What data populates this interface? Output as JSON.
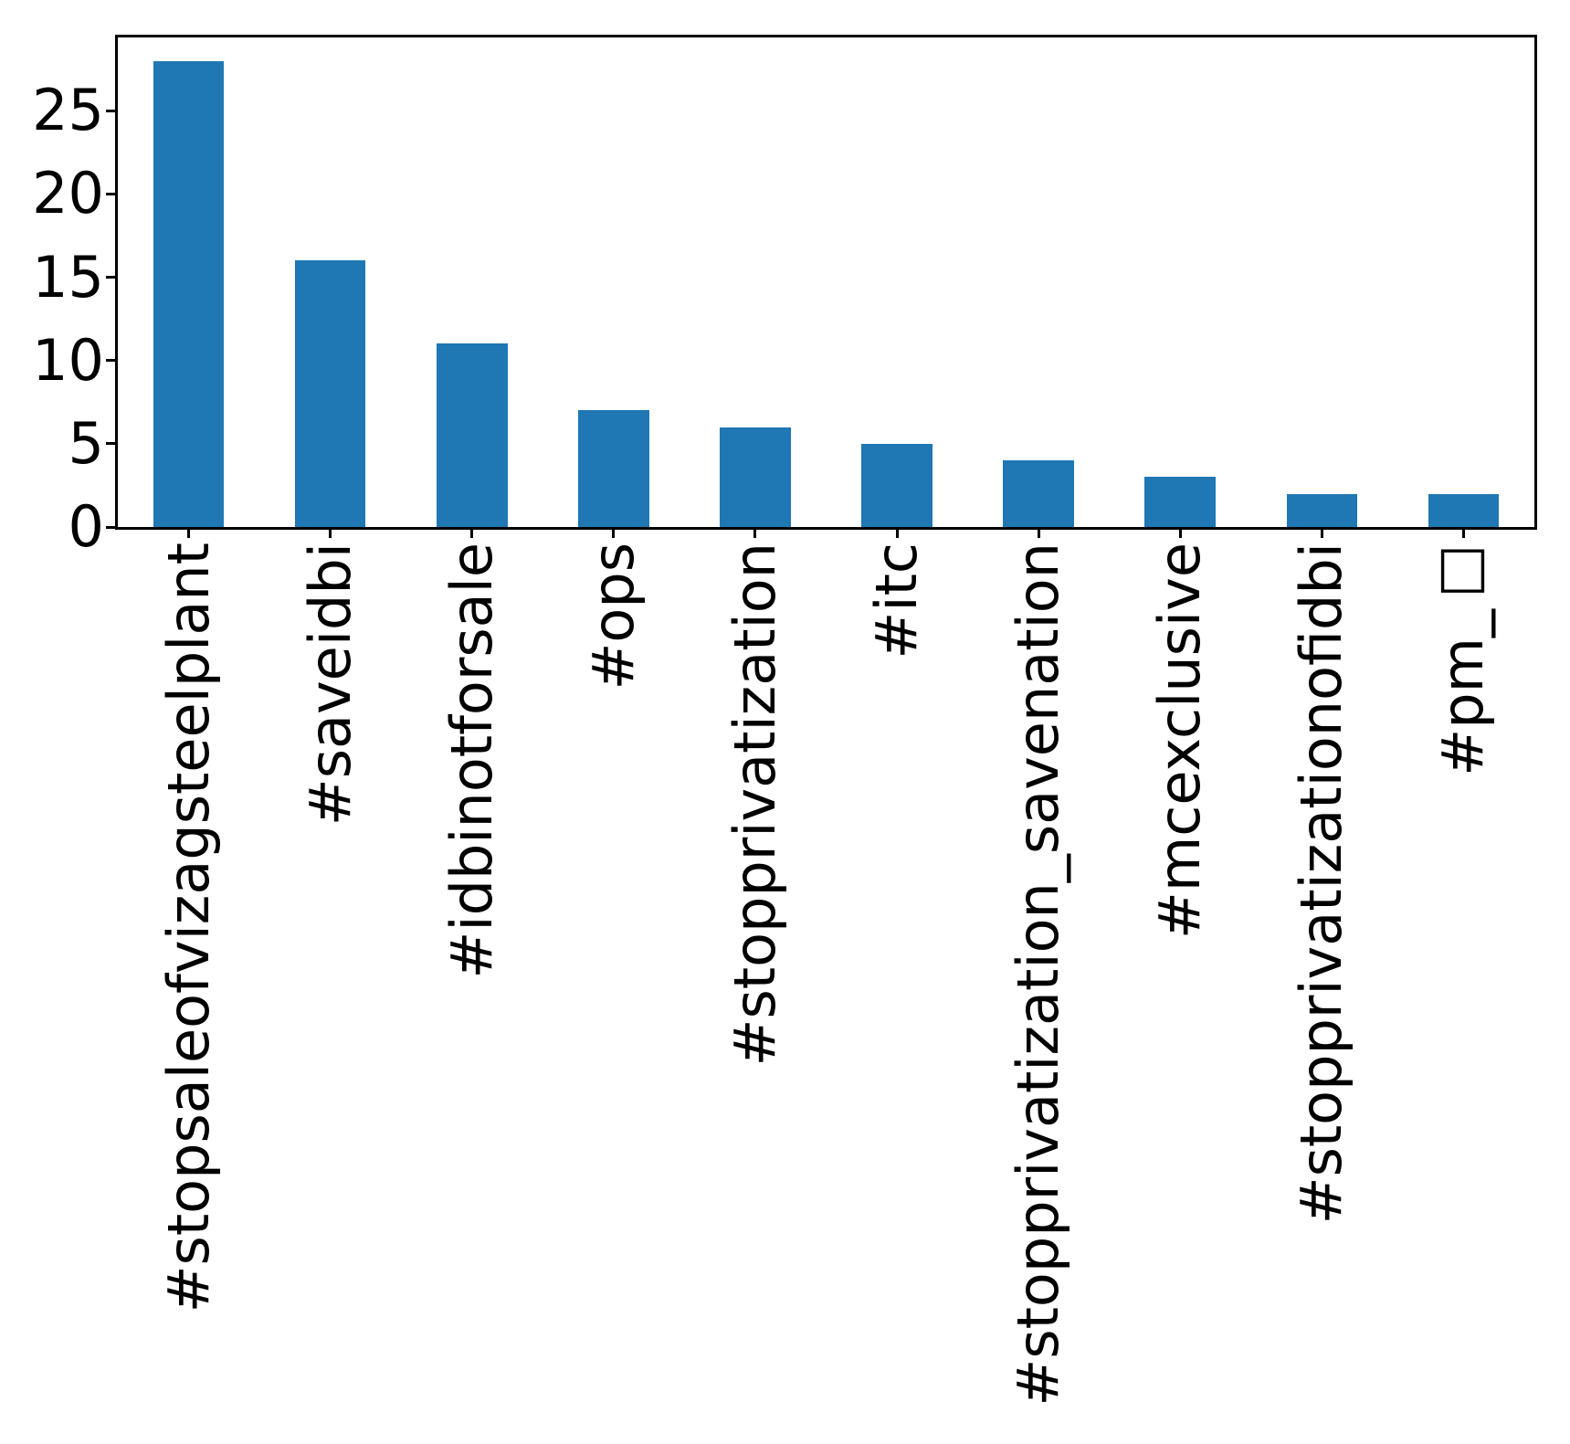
{
  "chart_data": {
    "type": "bar",
    "title": "",
    "xlabel": "",
    "ylabel": "",
    "categories": [
      "#stopsaleofvizagsteelplant",
      "#saveidbi",
      "#idbinotforsale",
      "#ops",
      "#stopprivatization",
      "#itc",
      "#stopprivatization_savenation",
      "#mcexclusive",
      "#stopprivatizationofidbi",
      "#pm_□"
    ],
    "values": [
      28,
      16,
      11,
      7,
      6,
      5,
      4,
      3,
      2,
      2
    ],
    "yticks": [
      0,
      5,
      10,
      15,
      20,
      25
    ],
    "ylim": [
      0,
      29.4
    ],
    "bar_color": "#1f77b4",
    "axis_color": "#000000",
    "background_color": "#ffffff",
    "grid": false,
    "legend": null,
    "x_tick_rotation": 90,
    "bar_rel_width": 0.5
  }
}
